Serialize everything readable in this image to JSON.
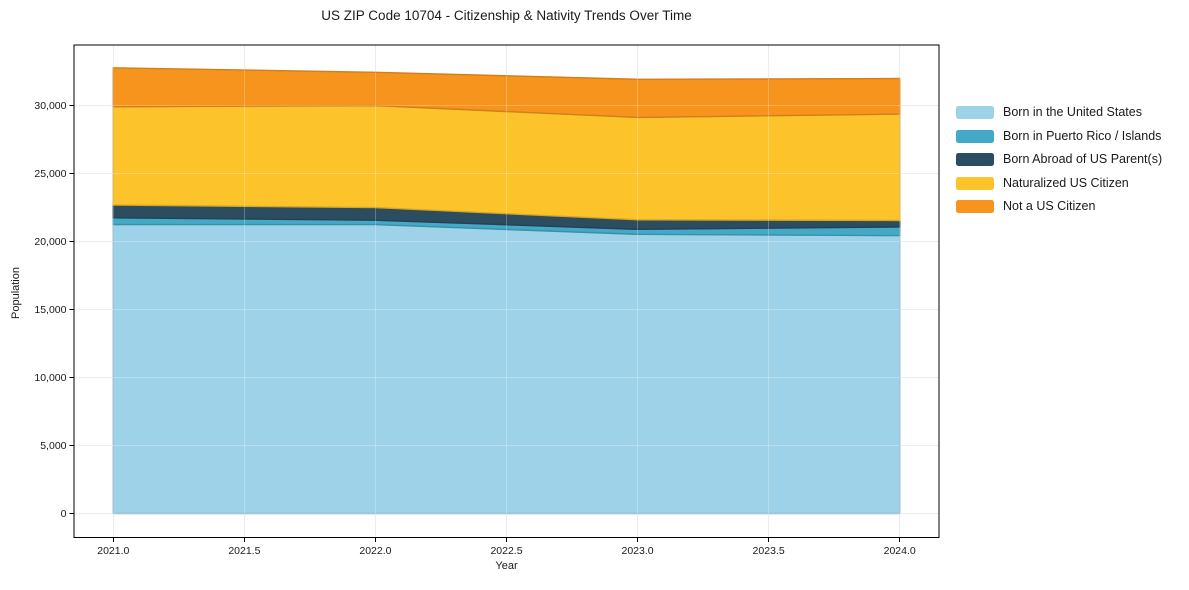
{
  "chart_data": {
    "type": "area",
    "stacked": true,
    "title": "US ZIP Code 10704 - Citizenship & Nativity Trends Over Time",
    "xlabel": "Year",
    "ylabel": "Population",
    "x": [
      2021,
      2022,
      2023,
      2024
    ],
    "series": [
      {
        "name": "Born in the United States",
        "color": "#9ED2E8",
        "values": [
          21250,
          21250,
          20530,
          20440
        ]
      },
      {
        "name": "Born in Puerto Rico / Islands",
        "color": "#44A9C7",
        "values": [
          500,
          320,
          370,
          640
        ]
      },
      {
        "name": "Born Abroad of US Parent(s)",
        "color": "#2C4D5F",
        "values": [
          940,
          930,
          700,
          470
        ]
      },
      {
        "name": "Naturalized US Citizen",
        "color": "#FCC32B",
        "values": [
          7230,
          7500,
          7530,
          7820
        ]
      },
      {
        "name": "Not a US Citizen",
        "color": "#F7941E",
        "values": [
          2860,
          2450,
          2800,
          2620
        ]
      }
    ],
    "totals": [
      32780,
      32450,
      31930,
      31990
    ],
    "xlim": [
      2020.85,
      2024.15
    ],
    "ylim": [
      -1765,
      34455
    ],
    "xticks": {
      "values": [
        2021,
        2021.5,
        2022,
        2022.5,
        2023,
        2023.5,
        2024
      ],
      "labels": [
        "2021.0",
        "2021.5",
        "2022.0",
        "2022.5",
        "2023.0",
        "2023.5",
        "2024.0"
      ]
    },
    "yticks": {
      "values": [
        0,
        5000,
        10000,
        15000,
        20000,
        25000,
        30000
      ],
      "labels": [
        "0",
        "5,000",
        "10,000",
        "15,000",
        "20,000",
        "25,000",
        "30,000"
      ]
    },
    "grid": true,
    "legend_position": "right"
  },
  "colors": {
    "background": "#ffffff",
    "frame": "#000000",
    "grid": "#e6e6e6",
    "text": "#1a1a1a"
  }
}
